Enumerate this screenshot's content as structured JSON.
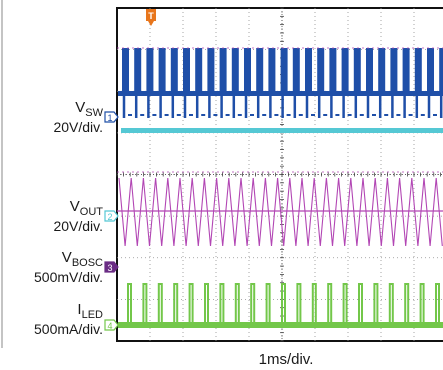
{
  "chart_data": {
    "type": "line",
    "xlabel": "1ms/div.",
    "grid": true,
    "x_divisions": 10,
    "y_divisions": 8,
    "trigger_marker": "T",
    "channels": [
      {
        "id": "1",
        "name": "V",
        "sub": "SW",
        "scale": "20V/div.",
        "color": "#1f4fa8"
      },
      {
        "id": "2",
        "name": "V",
        "sub": "OUT",
        "scale": "20V/div.",
        "color": "#b246b4"
      },
      {
        "id": "3",
        "name": "V",
        "sub": "BOSC",
        "scale": "500mV/div.",
        "color": "#6a2c84"
      },
      {
        "id": "4",
        "name": "I",
        "sub": "LED",
        "scale": "500mA/div.",
        "color": "#73c74a"
      }
    ],
    "reference_trace_color": "#55c8d4"
  }
}
